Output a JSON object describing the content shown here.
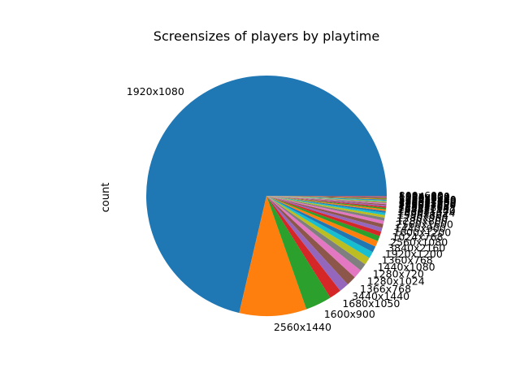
{
  "chart_data": {
    "type": "pie",
    "title": "Screensizes of players by playtime",
    "ylabel": "count",
    "startangle_deg": 0,
    "direction": "counterclockwise",
    "slices": [
      {
        "label": "1920x1080",
        "value": 71.0,
        "color": "#1f77b4"
      },
      {
        "label": "2560x1440",
        "value": 9.0,
        "color": "#ff7f0e"
      },
      {
        "label": "1600x900",
        "value": 3.5,
        "color": "#2ca02c"
      },
      {
        "label": "1680x1050",
        "value": 1.6,
        "color": "#d62728"
      },
      {
        "label": "3440x1440",
        "value": 1.3,
        "color": "#9467bd"
      },
      {
        "label": "1366x768",
        "value": 1.3,
        "color": "#8c564b"
      },
      {
        "label": "1280x1024",
        "value": 1.2,
        "color": "#e377c2"
      },
      {
        "label": "1280x720",
        "value": 1.0,
        "color": "#7f7f7f"
      },
      {
        "label": "1440x1080",
        "value": 1.0,
        "color": "#bcbd22"
      },
      {
        "label": "1360x768",
        "value": 0.9,
        "color": "#17becf"
      },
      {
        "label": "1920x1200",
        "value": 0.8,
        "color": "#1f77b4"
      },
      {
        "label": "3840x2160",
        "value": 0.8,
        "color": "#ff7f0e"
      },
      {
        "label": "2560x1080",
        "value": 0.7,
        "color": "#2ca02c"
      },
      {
        "label": "1024x768",
        "value": 0.6,
        "color": "#d62728"
      },
      {
        "label": "1600x1200",
        "value": 0.55,
        "color": "#9467bd"
      },
      {
        "label": "1440x900",
        "value": 0.5,
        "color": "#8c564b"
      },
      {
        "label": "2560x1600",
        "value": 0.45,
        "color": "#e377c2"
      },
      {
        "label": "1280x800",
        "value": 0.4,
        "color": "#7f7f7f"
      },
      {
        "label": "1280x960",
        "value": 0.35,
        "color": "#bcbd22"
      },
      {
        "label": "1536x864",
        "value": 0.3,
        "color": "#17becf"
      },
      {
        "label": "1600x1024",
        "value": 0.25,
        "color": "#1f77b4"
      },
      {
        "label": "1920x1440",
        "value": 0.22,
        "color": "#ff7f0e"
      },
      {
        "label": "2048x1152",
        "value": 0.2,
        "color": "#2ca02c"
      },
      {
        "label": "1152x864",
        "value": 0.18,
        "color": "#d62728"
      },
      {
        "label": "1280x768",
        "value": 0.16,
        "color": "#9467bd"
      },
      {
        "label": "2880x1620",
        "value": 0.15,
        "color": "#8c564b"
      },
      {
        "label": "3200x1800",
        "value": 0.14,
        "color": "#e377c2"
      },
      {
        "label": "1400x1050",
        "value": 0.13,
        "color": "#7f7f7f"
      },
      {
        "label": "1920x1280",
        "value": 0.12,
        "color": "#bcbd22"
      },
      {
        "label": "2304x1440",
        "value": 0.11,
        "color": "#17becf"
      },
      {
        "label": "5120x1440",
        "value": 0.1,
        "color": "#1f77b4"
      },
      {
        "label": "1093x615",
        "value": 0.1,
        "color": "#ff7f0e"
      },
      {
        "label": "1176x664",
        "value": 0.1,
        "color": "#2ca02c"
      },
      {
        "label": "1280x600",
        "value": 0.1,
        "color": "#d62728"
      },
      {
        "label": "1024x600",
        "value": 0.1,
        "color": "#9467bd"
      },
      {
        "label": "800x600",
        "value": 0.1,
        "color": "#8c564b"
      }
    ]
  }
}
